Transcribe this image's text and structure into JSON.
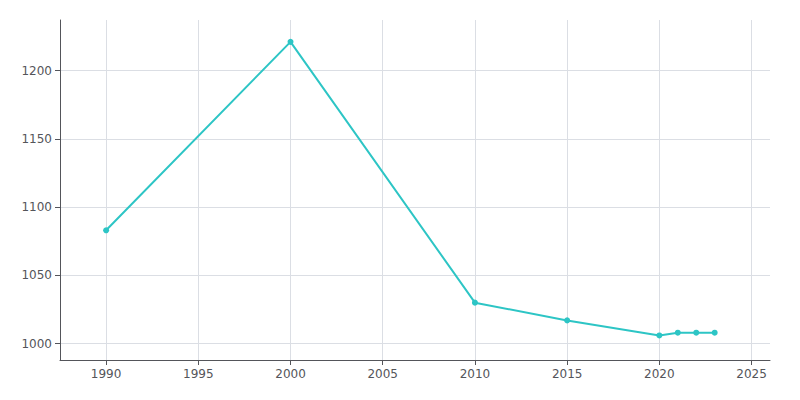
{
  "chart_data": {
    "type": "line",
    "x": [
      1990,
      2000,
      2010,
      2015,
      2020,
      2021,
      2022,
      2023
    ],
    "values": [
      1083,
      1221,
      1030,
      1017,
      1006,
      1008,
      1008,
      1008
    ],
    "color": "#2DC5C5",
    "marker": "circle",
    "xlim": [
      1987.5,
      2026
    ],
    "ylim": [
      988,
      1237
    ],
    "xticks": [
      1990,
      1995,
      2000,
      2005,
      2010,
      2015,
      2020,
      2025
    ],
    "yticks": [
      1000,
      1050,
      1100,
      1150,
      1200
    ],
    "grid": true
  }
}
